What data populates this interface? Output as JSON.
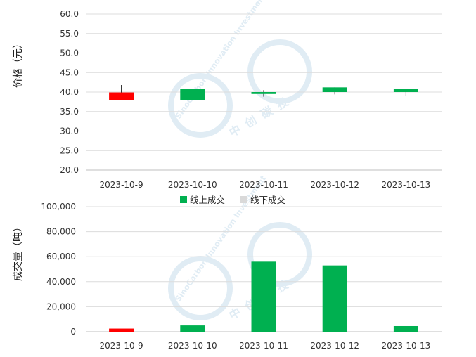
{
  "colors": {
    "up": "#00b050",
    "down": "#ff0000",
    "offline": "#d9d9d9",
    "wick": "#222222"
  },
  "watermark": {
    "text_en": "SinoCarbon Innovation Investment",
    "text_cn": "中创碳投"
  },
  "chart_data": [
    {
      "type": "candlestick",
      "ylabel": "价格（元）",
      "ylim": [
        20,
        60
      ],
      "yticks": [
        "60.0",
        "55.0",
        "50.0",
        "45.0",
        "40.0",
        "35.0",
        "30.0",
        "25.0",
        "20.0"
      ],
      "categories": [
        "2023-10-9",
        "2023-10-10",
        "2023-10-11",
        "2023-10-12",
        "2023-10-13"
      ],
      "candles": [
        {
          "open": 39.9,
          "close": 37.9,
          "high": 41.8,
          "low": 37.9,
          "direction": "down"
        },
        {
          "open": 38.0,
          "close": 40.9,
          "high": 40.9,
          "low": 38.0,
          "direction": "up"
        },
        {
          "open": 39.5,
          "close": 40.0,
          "high": 40.5,
          "low": 38.8,
          "direction": "up"
        },
        {
          "open": 40.0,
          "close": 41.2,
          "high": 41.2,
          "low": 39.4,
          "direction": "up"
        },
        {
          "open": 40.0,
          "close": 40.8,
          "high": 40.8,
          "low": 39.0,
          "direction": "up"
        }
      ]
    },
    {
      "type": "bar",
      "ylabel": "成交量（吨）",
      "ylim": [
        0,
        100000
      ],
      "yticks": [
        "100,000",
        "80,000",
        "60,000",
        "40,000",
        "20,000",
        "0"
      ],
      "categories": [
        "2023-10-9",
        "2023-10-10",
        "2023-10-11",
        "2023-10-12",
        "2023-10-13"
      ],
      "legend": {
        "position": "top",
        "items": [
          "线上成交",
          "线下成交"
        ]
      },
      "series": [
        {
          "name": "线上成交",
          "values": [
            2500,
            5000,
            56000,
            53000,
            4500
          ],
          "colors": [
            "down",
            "up",
            "up",
            "up",
            "up"
          ]
        },
        {
          "name": "线下成交",
          "values": [
            0,
            0,
            0,
            0,
            0
          ]
        }
      ]
    }
  ]
}
